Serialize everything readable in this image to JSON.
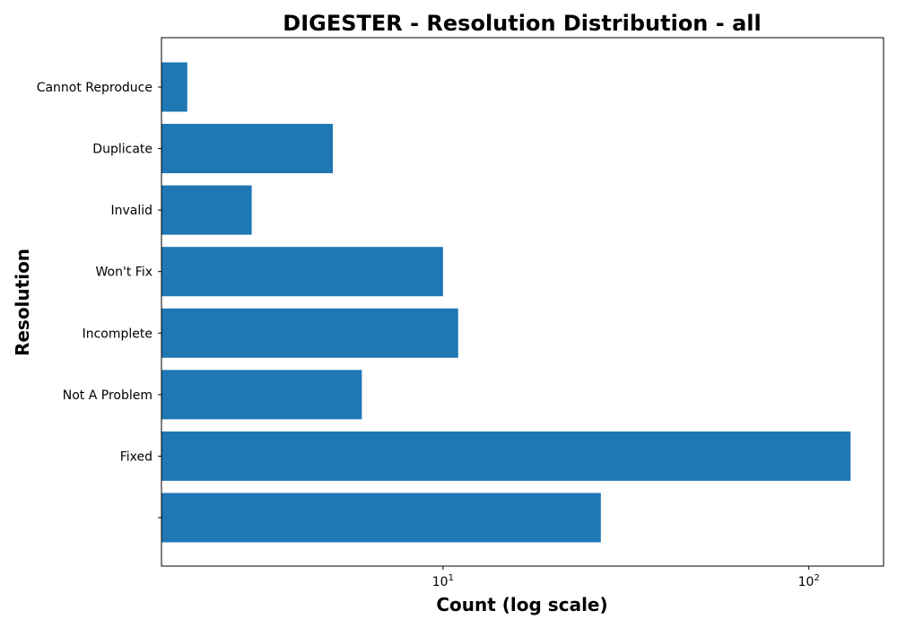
{
  "chart_data": {
    "type": "bar",
    "orientation": "horizontal",
    "title": "DIGESTER - Resolution Distribution - all",
    "xlabel": "Count (log scale)",
    "ylabel": "Resolution",
    "x_scale": "log",
    "xlim": [
      1.7,
      160
    ],
    "x_ticks": [
      {
        "value": 10,
        "base": "10",
        "exp": "1"
      },
      {
        "value": 100,
        "base": "10",
        "exp": "2"
      }
    ],
    "categories": [
      "Cannot Reproduce",
      "Duplicate",
      "Invalid",
      "Won't Fix",
      "Incomplete",
      "Not A Problem",
      "Fixed",
      ""
    ],
    "values": [
      2,
      5,
      3,
      10,
      11,
      6,
      130,
      27
    ],
    "bar_color": "#1f77b4",
    "grid": false,
    "legend": "none"
  }
}
